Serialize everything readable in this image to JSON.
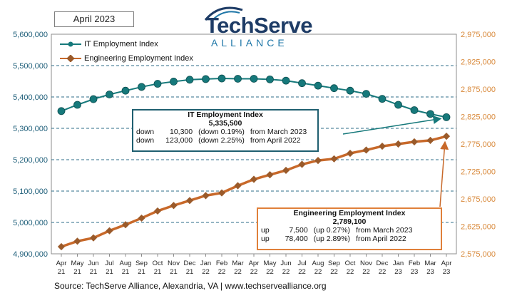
{
  "date_label": "April 2023",
  "logo": {
    "main": "TechServe",
    "sub": "ALLIANCE"
  },
  "source": "Source: TechServe Alliance, Alexandria, VA | www.techservealliance.org",
  "it_callout": {
    "title": "IT Employment Index",
    "value": "5,335,500",
    "rows": [
      [
        "down",
        "10,300",
        "(down 0.19%)",
        "from  March 2023"
      ],
      [
        "down",
        "123,000",
        "(down 2.25%)",
        "from  April 2022"
      ]
    ]
  },
  "eng_callout": {
    "title": "Engineering Employment Index",
    "value": "2,789,100",
    "rows": [
      [
        "up",
        "7,500",
        "(up 0.27%)",
        "from  March 2023"
      ],
      [
        "up",
        "78,400",
        "(up 2.89%)",
        "from  April 2022"
      ]
    ]
  },
  "colors": {
    "it": "#16797b",
    "eng": "#c8692a",
    "eng_marker": "#9a5a2a",
    "left_axis": "#1f5f7a",
    "right_axis": "#d98a3c",
    "grid": "#2d6e8a"
  },
  "chart_data": {
    "type": "line",
    "categories": [
      [
        "Apr",
        "21"
      ],
      [
        "May",
        "21"
      ],
      [
        "Jun",
        "21"
      ],
      [
        "Jul",
        "21"
      ],
      [
        "Aug",
        "21"
      ],
      [
        "Sep",
        "21"
      ],
      [
        "Oct",
        "21"
      ],
      [
        "Nov",
        "21"
      ],
      [
        "Dec",
        "21"
      ],
      [
        "Jan",
        "22"
      ],
      [
        "Feb",
        "22"
      ],
      [
        "Mar",
        "22"
      ],
      [
        "Apr",
        "22"
      ],
      [
        "May",
        "22"
      ],
      [
        "Jun",
        "22"
      ],
      [
        "Jul",
        "22"
      ],
      [
        "Aug",
        "22"
      ],
      [
        "Sep",
        "22"
      ],
      [
        "Oct",
        "22"
      ],
      [
        "Nov",
        "22"
      ],
      [
        "Dec",
        "22"
      ],
      [
        "Jan",
        "23"
      ],
      [
        "Feb",
        "23"
      ],
      [
        "Mar",
        "23"
      ],
      [
        "Apr",
        "23"
      ]
    ],
    "series": [
      {
        "name": "IT Employment Index",
        "axis": "left",
        "values": [
          5355000,
          5375000,
          5393000,
          5408000,
          5420000,
          5432000,
          5442000,
          5449000,
          5455000,
          5457000,
          5459000,
          5458000,
          5458000,
          5456000,
          5452000,
          5444000,
          5436000,
          5428000,
          5420000,
          5410000,
          5394000,
          5375000,
          5358000,
          5345800,
          5335500
        ]
      },
      {
        "name": "Engineering Employment Index",
        "axis": "right",
        "values": [
          2588000,
          2598000,
          2604000,
          2617000,
          2628000,
          2640000,
          2653000,
          2663000,
          2672000,
          2681000,
          2686000,
          2699000,
          2710700,
          2719000,
          2727000,
          2738000,
          2745000,
          2748000,
          2758000,
          2764000,
          2771000,
          2775000,
          2779000,
          2781600,
          2789100
        ]
      }
    ],
    "left_axis": {
      "min": 4900000,
      "max": 5600000,
      "step": 100000,
      "ticks": [
        "4,900,000",
        "5,000,000",
        "5,100,000",
        "5,200,000",
        "5,300,000",
        "5,400,000",
        "5,500,000",
        "5,600,000"
      ]
    },
    "right_axis": {
      "min": 2575000,
      "max": 2975000,
      "step": 50000,
      "ticks": [
        "2,575,000",
        "2,625,000",
        "2,675,000",
        "2,725,000",
        "2,775,000",
        "2,825,000",
        "2,875,000",
        "2,925,000",
        "2,975,000"
      ]
    },
    "legend_position": "top-left",
    "grid": true
  }
}
